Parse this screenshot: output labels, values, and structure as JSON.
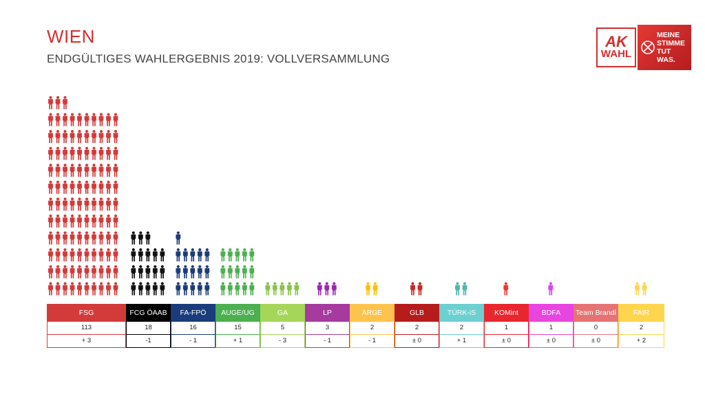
{
  "header": {
    "title": "WIEN",
    "subtitle": "ENDGÜLTIGES WAHLERGEBNIS 2019: VOLLVERSAMMLUNG"
  },
  "logo": {
    "ak": "AK",
    "wahl": "WAHL",
    "slogan": [
      "MEINE",
      "STIMME",
      "TUT WAS."
    ]
  },
  "chart_data": {
    "type": "bar",
    "title": "ENDGÜLTIGES WAHLERGEBNIS 2019: VOLLVERSAMMLUNG",
    "unit_per_icon": 1,
    "categories": [
      "FSG",
      "FCG ÖAAB",
      "FA-FPÖ",
      "AUGE/UG",
      "GA",
      "LP",
      "ARGE",
      "GLB",
      "TÜRK-iS",
      "KOMint",
      "BDFA",
      "Team Brandl",
      "FAIR"
    ],
    "values": [
      113,
      18,
      16,
      15,
      5,
      3,
      2,
      2,
      2,
      1,
      1,
      0,
      2
    ],
    "changes": [
      "+ 3",
      "-1",
      "- 1",
      "+ 1",
      "- 3",
      "- 1",
      "- 1",
      "± 0",
      "+ 1",
      "± 0",
      "± 0",
      "± 0",
      "+ 2"
    ],
    "colors": [
      "#d33a3a",
      "#111111",
      "#1d3a7a",
      "#4caf50",
      "#8bc34a",
      "#9c27b0",
      "#ffc107",
      "#c62828",
      "#4db6ac",
      "#e53935",
      "#e040fb",
      "#e57373",
      "#ffd54f"
    ],
    "header_colors": [
      "#d33a3a",
      "#000000",
      "#1a3b7c",
      "#4caf50",
      "#a5d65a",
      "#a63a9e",
      "#ffc34d",
      "#b71c1c",
      "#6ccfd0",
      "#e8262e",
      "#e844e0",
      "#e57373",
      "#ffd54f"
    ]
  }
}
